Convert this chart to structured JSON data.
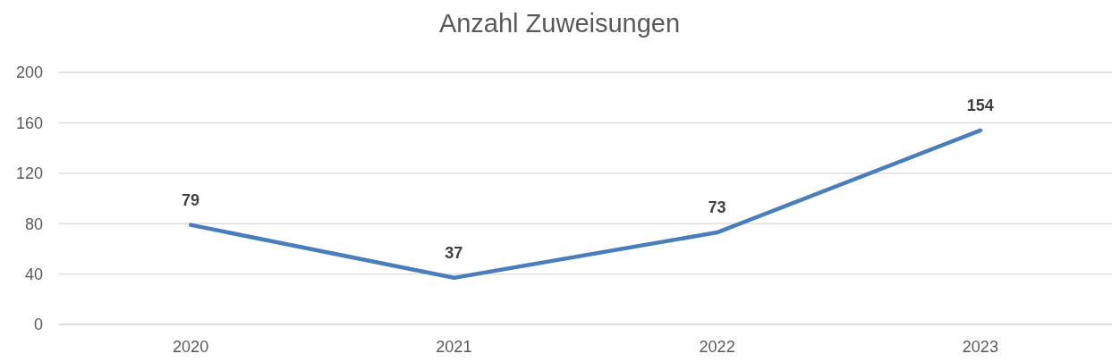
{
  "chart_data": {
    "type": "line",
    "title": "Anzahl Zuweisungen",
    "categories": [
      "2020",
      "2021",
      "2022",
      "2023"
    ],
    "series": [
      {
        "color": "#4a7ebb",
        "values": [
          79,
          37,
          73,
          154
        ]
      }
    ],
    "ylim": [
      0,
      200
    ],
    "yticks": [
      0,
      40,
      80,
      120,
      160,
      200
    ],
    "grid": "y",
    "data_labels": true
  }
}
